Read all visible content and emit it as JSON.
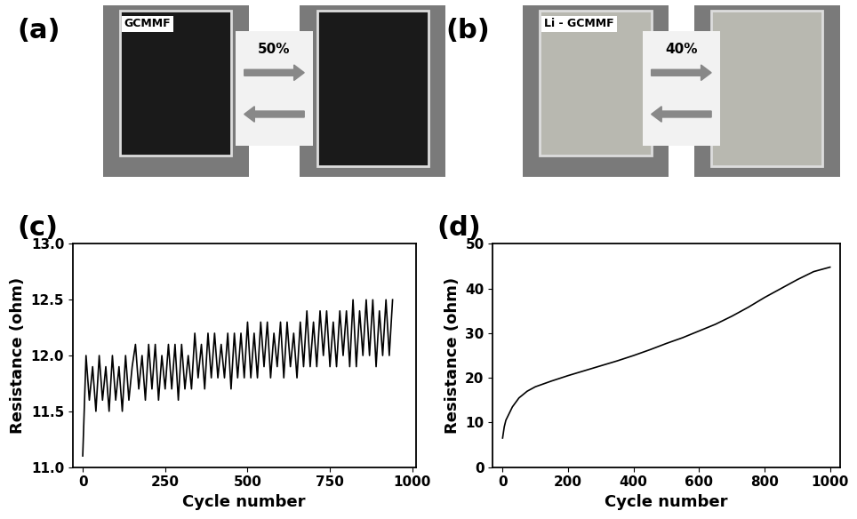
{
  "photos": [
    {
      "panel": "(a)",
      "sample": "GCMMF",
      "strain": "50%",
      "color": "#1a1a1a"
    },
    {
      "panel": "(b)",
      "sample": "Li - GCMMF",
      "strain": "40%",
      "color": "#b8b8b0"
    }
  ],
  "chart_data": [
    {
      "type": "line",
      "title": "(c)",
      "x_label": "Cycle number",
      "y_label": "Resistance (ohm)",
      "x": [
        0,
        10,
        20,
        30,
        40,
        50,
        60,
        70,
        80,
        90,
        100,
        110,
        120,
        130,
        140,
        150,
        160,
        170,
        180,
        190,
        200,
        210,
        220,
        230,
        240,
        250,
        260,
        270,
        280,
        290,
        300,
        310,
        320,
        330,
        340,
        350,
        360,
        370,
        380,
        390,
        400,
        410,
        420,
        430,
        440,
        450,
        460,
        470,
        480,
        490,
        500,
        510,
        520,
        530,
        540,
        550,
        560,
        570,
        580,
        590,
        600,
        610,
        620,
        630,
        640,
        650,
        660,
        670,
        680,
        690,
        700,
        710,
        720,
        730,
        740,
        750,
        760,
        770,
        780,
        790,
        800,
        810,
        820,
        830,
        840,
        850,
        860,
        870,
        880,
        890,
        900,
        910,
        920,
        930,
        940
      ],
      "values": [
        11.1,
        12.0,
        11.6,
        11.9,
        11.5,
        12.0,
        11.6,
        11.9,
        11.5,
        12.0,
        11.6,
        11.9,
        11.5,
        12.0,
        11.6,
        11.9,
        12.1,
        11.7,
        12.0,
        11.6,
        12.1,
        11.7,
        12.1,
        11.6,
        12.0,
        11.7,
        12.1,
        11.7,
        12.1,
        11.6,
        12.1,
        11.7,
        12.0,
        11.7,
        12.2,
        11.8,
        12.1,
        11.7,
        12.2,
        11.8,
        12.2,
        11.8,
        12.1,
        11.8,
        12.2,
        11.7,
        12.2,
        11.8,
        12.2,
        11.8,
        12.3,
        11.8,
        12.2,
        11.8,
        12.3,
        11.9,
        12.3,
        11.8,
        12.2,
        11.9,
        12.3,
        11.8,
        12.3,
        11.9,
        12.2,
        11.8,
        12.3,
        11.9,
        12.4,
        11.9,
        12.3,
        11.9,
        12.4,
        12.0,
        12.4,
        11.9,
        12.3,
        11.9,
        12.4,
        12.0,
        12.4,
        11.9,
        12.5,
        11.9,
        12.4,
        12.0,
        12.5,
        12.0,
        12.5,
        11.9,
        12.4,
        12.0,
        12.5,
        12.0,
        12.5
      ],
      "color": "#000000",
      "xlim": [
        -30,
        1010
      ],
      "xticks": [
        0,
        250,
        500,
        750,
        1000
      ],
      "ylim": [
        11.0,
        13.0
      ],
      "yticks": [
        {
          "value": 11,
          "label": "11.0"
        },
        11.5,
        {
          "value": 12,
          "label": "12.0"
        },
        12.5,
        {
          "value": 13,
          "label": "13.0"
        }
      ]
    },
    {
      "type": "line",
      "title": "(d)",
      "x_label": "Cycle number",
      "y_label": "Resistance (ohm)",
      "x": [
        0,
        5,
        10,
        20,
        30,
        50,
        75,
        100,
        150,
        200,
        250,
        300,
        350,
        400,
        450,
        500,
        550,
        600,
        650,
        700,
        750,
        800,
        850,
        900,
        950,
        1000
      ],
      "values": [
        6.5,
        9,
        10.5,
        12,
        13.5,
        15.5,
        17,
        18,
        19.3,
        20.5,
        21.6,
        22.7,
        23.8,
        25,
        26.3,
        27.7,
        29,
        30.5,
        32,
        33.8,
        35.8,
        38,
        40,
        42,
        43.8,
        44.8
      ],
      "color": "#000000",
      "xlim": [
        -30,
        1030
      ],
      "xticks": [
        0,
        200,
        400,
        600,
        800,
        1000
      ],
      "ylim": [
        0,
        50
      ],
      "yticks": [
        0,
        10,
        20,
        30,
        40,
        50
      ]
    }
  ]
}
